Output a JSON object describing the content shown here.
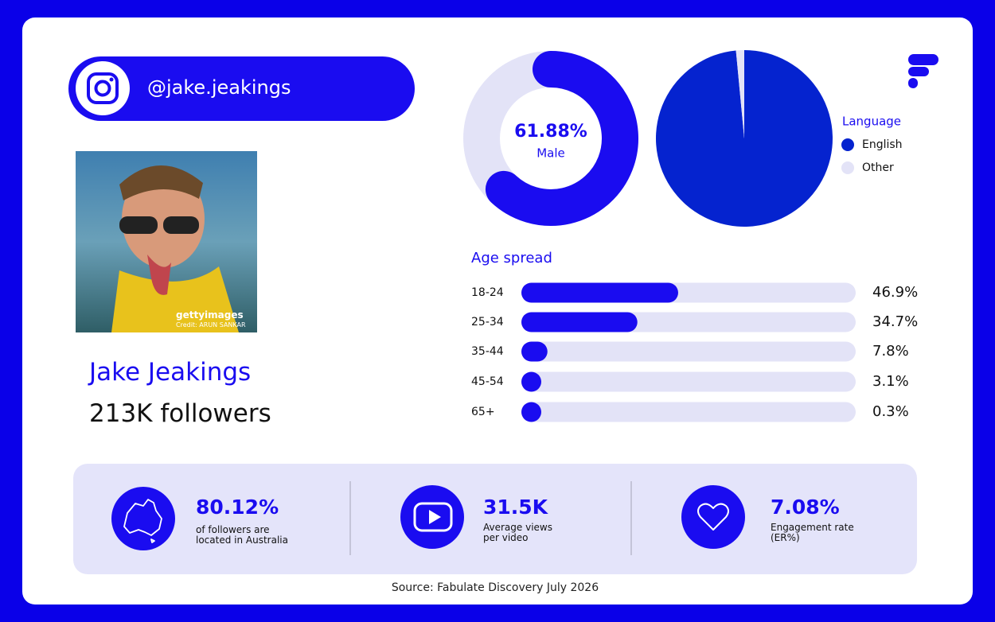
{
  "handle": "@jake.jeakings",
  "photo": {
    "brand": "gettyimages",
    "credit": "Credit: ARUN SANKAR"
  },
  "name": "Jake Jeakings",
  "followers": "213K followers",
  "chart_data": [
    {
      "type": "donut",
      "categories": [
        "Male"
      ],
      "values": [
        61.88
      ],
      "value_labels": [
        "61.88%"
      ],
      "color": "#1a0cf0",
      "track_color": "#e3e3f7"
    },
    {
      "type": "pie",
      "legend_title": "Language",
      "categories": [
        "English",
        "Other"
      ],
      "values": [
        98.5,
        1.5
      ],
      "colors": [
        "#0523cf",
        "#e3e3f7"
      ],
      "legend": "right"
    },
    {
      "type": "bar",
      "title": "Age spread",
      "categories": [
        "18-24",
        "25-34",
        "35-44",
        "45-54",
        "65+"
      ],
      "values": [
        46.9,
        34.7,
        7.8,
        3.1,
        0.3
      ],
      "value_labels": [
        "46.9%",
        "34.7%",
        "7.8%",
        "3.1%",
        "0.3%"
      ],
      "xlim": [
        0,
        100
      ],
      "color": "#1a0cf0",
      "track_color": "#e3e3f7"
    }
  ],
  "stats": [
    {
      "value": "80.12%",
      "label": "of followers are located in Australia"
    },
    {
      "value": "31.5K",
      "label": "Average views per video"
    },
    {
      "value": "7.08%",
      "label": "Engagement rate (ER%)"
    }
  ],
  "source": "Source: Fabulate Discovery July 2026"
}
